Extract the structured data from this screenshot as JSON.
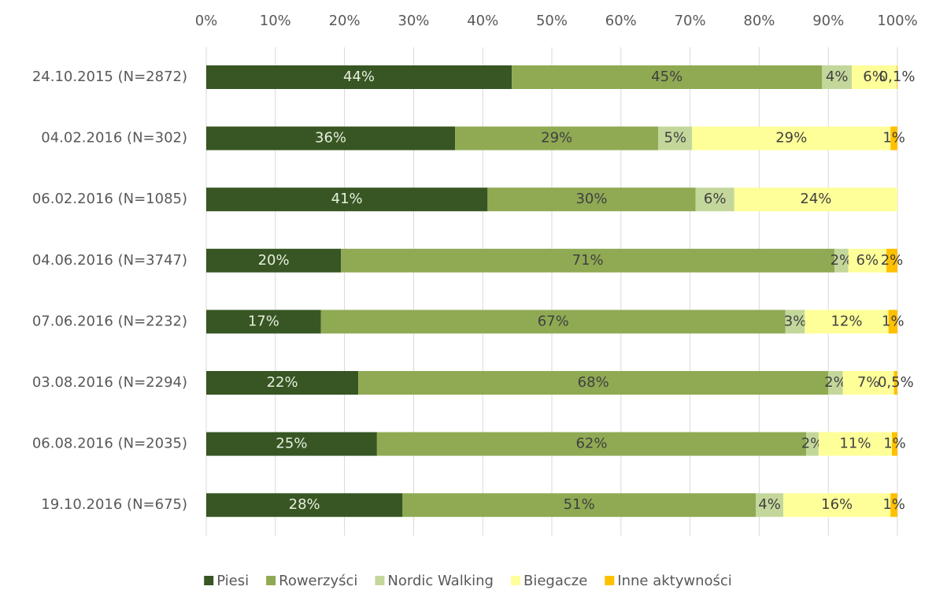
{
  "chart_data": {
    "type": "stacked_bar_horizontal",
    "categories": [
      "24.10.2015 (N=2872)",
      "04.02.2016 (N=302)",
      "06.02.2016 (N=1085)",
      "04.06.2016 (N=3747)",
      "07.06.2016 (N=2232)",
      "03.08.2016 (N=2294)",
      "06.08.2016 (N=2035)",
      "19.10.2016 (N=675)"
    ],
    "series": [
      {
        "name": "Piesi",
        "color": "#375623",
        "values": [
          44.2,
          36.0,
          40.7,
          19.5,
          16.6,
          22.0,
          24.7,
          28.4
        ],
        "value_labels": [
          "44%",
          "36%",
          "41%",
          "20%",
          "17%",
          "22%",
          "25%",
          "28%"
        ]
      },
      {
        "name": "Rowerzyści",
        "color": "#8faa53",
        "values": [
          44.9,
          29.4,
          30.1,
          71.4,
          67.2,
          68.0,
          62.1,
          51.1
        ],
        "value_labels": [
          "45%",
          "29%",
          "30%",
          "71%",
          "67%",
          "68%",
          "62%",
          "51%"
        ]
      },
      {
        "name": "Nordic Walking",
        "color": "#c4d79b",
        "values": [
          4.3,
          4.9,
          5.6,
          2.0,
          2.8,
          2.1,
          1.8,
          4.0
        ],
        "value_labels": [
          "4%",
          "5%",
          "6%",
          "2%",
          "3%",
          "2%",
          "2%",
          "4%"
        ]
      },
      {
        "name": "Biegacze",
        "color": "#ffff99",
        "values": [
          6.5,
          28.7,
          23.6,
          5.5,
          12.1,
          7.4,
          10.6,
          15.5
        ],
        "value_labels": [
          "6%",
          "29%",
          "24%",
          "6%",
          "12%",
          "7%",
          "11%",
          "16%"
        ]
      },
      {
        "name": "Inne aktywności",
        "color": "#ffc000",
        "values": [
          0.1,
          1.0,
          0,
          1.6,
          1.3,
          0.5,
          0.8,
          1.0
        ],
        "value_labels": [
          "0,1%",
          "1%",
          null,
          "2%",
          "1%",
          "0,5%",
          "1%",
          "1%"
        ]
      }
    ],
    "xlim": [
      0,
      100
    ],
    "xticks": [
      {
        "value": 0,
        "label": "0%"
      },
      {
        "value": 10,
        "label": "10%"
      },
      {
        "value": 20,
        "label": "20%"
      },
      {
        "value": 30,
        "label": "30%"
      },
      {
        "value": 40,
        "label": "40%"
      },
      {
        "value": 50,
        "label": "50%"
      },
      {
        "value": 60,
        "label": "60%"
      },
      {
        "value": 70,
        "label": "70%"
      },
      {
        "value": 80,
        "label": "80%"
      },
      {
        "value": 90,
        "label": "90%"
      },
      {
        "value": 100,
        "label": "100%"
      }
    ],
    "grid": true,
    "legend": "bottom"
  }
}
